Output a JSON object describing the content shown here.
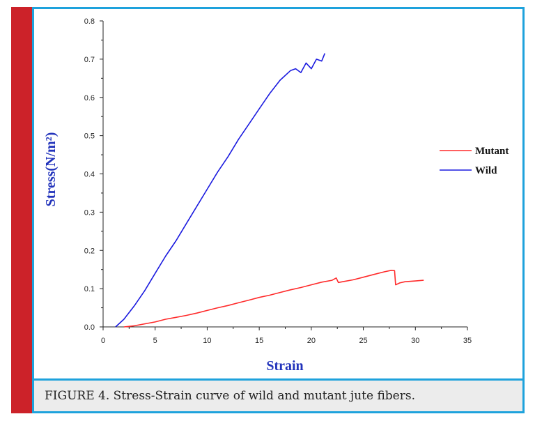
{
  "caption": "FIGURE 4. Stress-Strain curve of wild and mutant jute fibers.",
  "chart_data": {
    "type": "line",
    "xlabel": "Strain",
    "ylabel": "Stress(N/m²)",
    "xlim": [
      0,
      35
    ],
    "ylim": [
      0,
      0.8
    ],
    "x_ticks": [
      "0",
      "5",
      "10",
      "15",
      "20",
      "25",
      "30",
      "35"
    ],
    "y_ticks": [
      "0.0",
      "0.1",
      "0.2",
      "0.3",
      "0.4",
      "0.5",
      "0.6",
      "0.7",
      "0.8"
    ],
    "legend_position": "right",
    "series": [
      {
        "name": "Mutant",
        "color": "#ff2a2a",
        "points": [
          [
            2,
            0
          ],
          [
            3,
            0.003
          ],
          [
            4,
            0.008
          ],
          [
            5,
            0.013
          ],
          [
            6,
            0.02
          ],
          [
            7,
            0.025
          ],
          [
            8,
            0.03
          ],
          [
            9,
            0.036
          ],
          [
            10,
            0.043
          ],
          [
            11,
            0.05
          ],
          [
            12,
            0.056
          ],
          [
            13,
            0.063
          ],
          [
            14,
            0.07
          ],
          [
            15,
            0.077
          ],
          [
            16,
            0.083
          ],
          [
            17,
            0.09
          ],
          [
            18,
            0.097
          ],
          [
            19,
            0.103
          ],
          [
            20,
            0.11
          ],
          [
            21,
            0.117
          ],
          [
            22,
            0.122
          ],
          [
            22.4,
            0.128
          ],
          [
            22.6,
            0.116
          ],
          [
            23,
            0.118
          ],
          [
            24,
            0.123
          ],
          [
            25,
            0.13
          ],
          [
            26,
            0.137
          ],
          [
            27,
            0.144
          ],
          [
            27.7,
            0.148
          ],
          [
            28,
            0.147
          ],
          [
            28.1,
            0.11
          ],
          [
            28.5,
            0.115
          ],
          [
            29,
            0.118
          ],
          [
            30,
            0.12
          ],
          [
            30.8,
            0.122
          ]
        ]
      },
      {
        "name": "Wild",
        "color": "#1a1adf",
        "points": [
          [
            1.2,
            0
          ],
          [
            2,
            0.02
          ],
          [
            3,
            0.055
          ],
          [
            4,
            0.095
          ],
          [
            5,
            0.14
          ],
          [
            6,
            0.185
          ],
          [
            7,
            0.225
          ],
          [
            8,
            0.27
          ],
          [
            9,
            0.315
          ],
          [
            10,
            0.36
          ],
          [
            11,
            0.405
          ],
          [
            12,
            0.445
          ],
          [
            13,
            0.49
          ],
          [
            14,
            0.53
          ],
          [
            15,
            0.57
          ],
          [
            16,
            0.61
          ],
          [
            17,
            0.645
          ],
          [
            18,
            0.67
          ],
          [
            18.5,
            0.675
          ],
          [
            19,
            0.665
          ],
          [
            19.5,
            0.69
          ],
          [
            20,
            0.675
          ],
          [
            20.5,
            0.7
          ],
          [
            21,
            0.695
          ],
          [
            21.3,
            0.715
          ]
        ]
      }
    ]
  }
}
